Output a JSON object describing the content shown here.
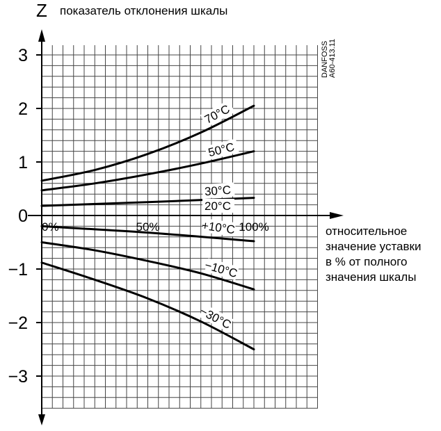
{
  "header": {
    "z_symbol": "Z",
    "y_title": "показатель отклонения шкалы"
  },
  "side_code": {
    "line1": "DANFOSS",
    "line2": "A60-413.11"
  },
  "x_description": [
    "относительное",
    "значение уставки",
    "в % от полного",
    "значения шкалы"
  ],
  "chart_data": {
    "type": "line",
    "title": "",
    "ylabel": "показатель отклонения шкалы",
    "xlabel": "относительное значение уставки в % от полного значения шкалы",
    "xlim": [
      0,
      100
    ],
    "ylim": [
      -3.5,
      3.2
    ],
    "grid": true,
    "y_ticks": [
      {
        "value": 3,
        "label": "3"
      },
      {
        "value": 2,
        "label": "2"
      },
      {
        "value": 1,
        "label": "1"
      },
      {
        "value": 0,
        "label": "0"
      },
      {
        "value": -1,
        "label": "−1"
      },
      {
        "value": -2,
        "label": "−2"
      },
      {
        "value": -3,
        "label": "−3"
      }
    ],
    "x_ticks": [
      {
        "value": 0,
        "label": "0%"
      },
      {
        "value": 50,
        "label": "50%"
      },
      {
        "value": 100,
        "label": "100%"
      }
    ],
    "series": [
      {
        "name": "70°C",
        "x": [
          0,
          25,
          50,
          75,
          100
        ],
        "y": [
          0.65,
          0.85,
          1.15,
          1.55,
          2.05
        ]
      },
      {
        "name": "50°C",
        "x": [
          0,
          25,
          50,
          75,
          100
        ],
        "y": [
          0.47,
          0.6,
          0.77,
          0.97,
          1.2
        ]
      },
      {
        "name": "30°C",
        "x": [
          0,
          50,
          100
        ],
        "y": [
          0.18,
          0.25,
          0.33
        ]
      },
      {
        "name": "20°C",
        "x": [
          0,
          100
        ],
        "y": [
          0.0,
          0.0
        ]
      },
      {
        "name": "+10°C",
        "x": [
          0,
          50,
          100
        ],
        "y": [
          -0.2,
          -0.32,
          -0.48
        ]
      },
      {
        "name": "−10°C",
        "x": [
          0,
          25,
          50,
          75,
          100
        ],
        "y": [
          -0.5,
          -0.65,
          -0.85,
          -1.08,
          -1.38
        ]
      },
      {
        "name": "−30°C",
        "x": [
          0,
          25,
          50,
          75,
          100
        ],
        "y": [
          -0.88,
          -1.2,
          -1.55,
          -1.98,
          -2.5
        ]
      }
    ]
  }
}
